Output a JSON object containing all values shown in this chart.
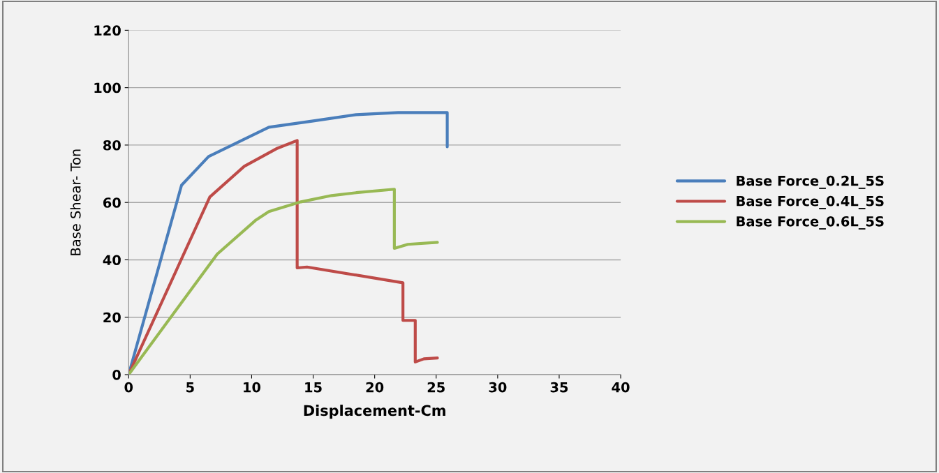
{
  "chart_data": {
    "type": "line",
    "xlabel": "Displacement-Cm",
    "ylabel": "Base Shear- Ton",
    "xlim": [
      0,
      40
    ],
    "xticks": [
      0,
      5,
      10,
      15,
      20,
      25,
      30,
      35,
      40
    ],
    "ylim": [
      0,
      120
    ],
    "yticks": [
      0,
      20,
      40,
      60,
      80,
      100,
      120
    ],
    "grid": "y",
    "legend": "right",
    "marker": "none",
    "line_style": "solid",
    "series": [
      {
        "name": "Base Force_0.2L_5S",
        "color": "#4a7ebb",
        "x": [
          0,
          4.3,
          6.5,
          11.4,
          15,
          18.5,
          21.9,
          25.9,
          25.9
        ],
        "values": [
          0,
          66,
          76,
          86.2,
          88.4,
          90.6,
          91.3,
          91.3,
          79.4
        ]
      },
      {
        "name": "Base Force_0.4L_5S",
        "color": "#be4b48",
        "x": [
          0,
          6.6,
          9.4,
          12.1,
          13.7,
          13.7,
          14.5,
          22.3,
          22.3,
          23.3,
          23.3,
          24,
          25.1
        ],
        "values": [
          0,
          61.9,
          72.6,
          78.9,
          81.6,
          37.2,
          37.5,
          32,
          18.9,
          18.9,
          4.4,
          5.5,
          5.8
        ]
      },
      {
        "name": "Base Force_0.6L_5S",
        "color": "#98b954",
        "x": [
          0,
          7.2,
          10.3,
          11.4,
          14,
          16.5,
          18.5,
          21.6,
          21.6,
          22.7,
          25.1
        ],
        "values": [
          0,
          42,
          53.7,
          56.8,
          60.2,
          62.4,
          63.4,
          64.6,
          44,
          45.4,
          46.1
        ]
      }
    ]
  }
}
